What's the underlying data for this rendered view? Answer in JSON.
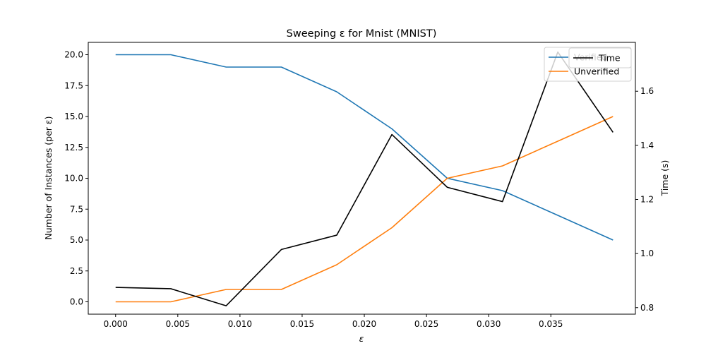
{
  "chart_data": {
    "type": "line",
    "title": "Sweeping ε for Mnist (MNIST)",
    "xlabel": "ε",
    "ylabel_left": "Number of Instances (per ε)",
    "ylabel_right": "Time (s)",
    "xlim": [
      -0.0022,
      0.0418
    ],
    "ylim_left": [
      -1.0,
      21.0
    ],
    "ylim_right": [
      0.7759,
      1.7807
    ],
    "x_ticks": [
      0.0,
      0.005,
      0.01,
      0.015,
      0.02,
      0.025,
      0.03,
      0.035
    ],
    "x_tick_labels": [
      "0.000",
      "0.005",
      "0.010",
      "0.015",
      "0.020",
      "0.025",
      "0.030",
      "0.035"
    ],
    "y_left_ticks": [
      0.0,
      2.5,
      5.0,
      7.5,
      10.0,
      12.5,
      15.0,
      17.5,
      20.0
    ],
    "y_left_tick_labels": [
      "0.0",
      "2.5",
      "5.0",
      "7.5",
      "10.0",
      "12.5",
      "15.0",
      "17.5",
      "20.0"
    ],
    "y_right_ticks": [
      0.8,
      1.0,
      1.2,
      1.4,
      1.6
    ],
    "y_right_tick_labels": [
      "0.8",
      "1.0",
      "1.2",
      "1.4",
      "1.6"
    ],
    "grid": false,
    "legend_placement": "top-right",
    "x": [
      0.0,
      0.00444,
      0.00889,
      0.01333,
      0.01778,
      0.02222,
      0.02667,
      0.03111,
      0.03556,
      0.04
    ],
    "series": [
      {
        "name": "Verified",
        "axis": "left",
        "color": "#1f77b4",
        "values": [
          20,
          20,
          19,
          19,
          17,
          14,
          10,
          9,
          7,
          5
        ]
      },
      {
        "name": "Unverified",
        "axis": "left",
        "color": "#ff7f0e",
        "values": [
          0,
          0,
          1,
          1,
          3,
          6,
          10,
          11,
          13,
          15
        ]
      },
      {
        "name": "Time",
        "axis": "right",
        "color": "#000000",
        "values": [
          0.875,
          0.87,
          0.807,
          1.015,
          1.068,
          1.44,
          1.245,
          1.192,
          1.745,
          1.448
        ]
      }
    ]
  }
}
